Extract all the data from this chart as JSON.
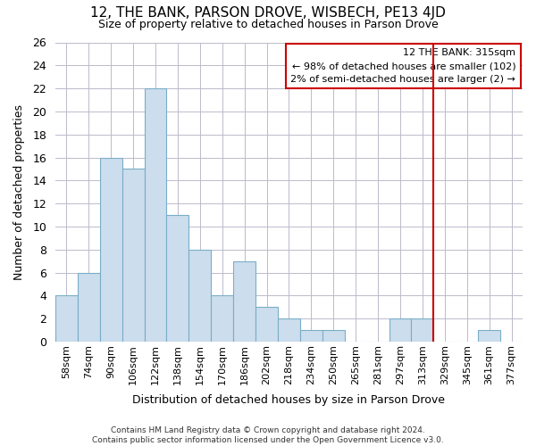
{
  "title": "12, THE BANK, PARSON DROVE, WISBECH, PE13 4JD",
  "subtitle": "Size of property relative to detached houses in Parson Drove",
  "xlabel": "Distribution of detached houses by size in Parson Drove",
  "ylabel": "Number of detached properties",
  "bar_color": "#ccdded",
  "bar_edge_color": "#7aaec8",
  "background_color": "#ffffff",
  "plot_bg_color": "#ffffff",
  "grid_color": "#bbbbcc",
  "categories": [
    "58sqm",
    "74sqm",
    "90sqm",
    "106sqm",
    "122sqm",
    "138sqm",
    "154sqm",
    "170sqm",
    "186sqm",
    "202sqm",
    "218sqm",
    "234sqm",
    "250sqm",
    "265sqm",
    "281sqm",
    "297sqm",
    "313sqm",
    "329sqm",
    "345sqm",
    "361sqm",
    "377sqm"
  ],
  "values": [
    4,
    6,
    16,
    15,
    22,
    11,
    8,
    4,
    7,
    3,
    2,
    1,
    1,
    0,
    0,
    2,
    2,
    0,
    0,
    1,
    0
  ],
  "property_label": "12 THE BANK: 315sqm",
  "pct_smaller": 98,
  "n_smaller": 102,
  "pct_larger": 2,
  "n_larger": 2,
  "vline_x_index": 16,
  "ylim": [
    0,
    26
  ],
  "yticks": [
    0,
    2,
    4,
    6,
    8,
    10,
    12,
    14,
    16,
    18,
    20,
    22,
    24,
    26
  ],
  "annotation_box_color": "#cc0000",
  "footer": "Contains HM Land Registry data © Crown copyright and database right 2024.\nContains public sector information licensed under the Open Government Licence v3.0."
}
